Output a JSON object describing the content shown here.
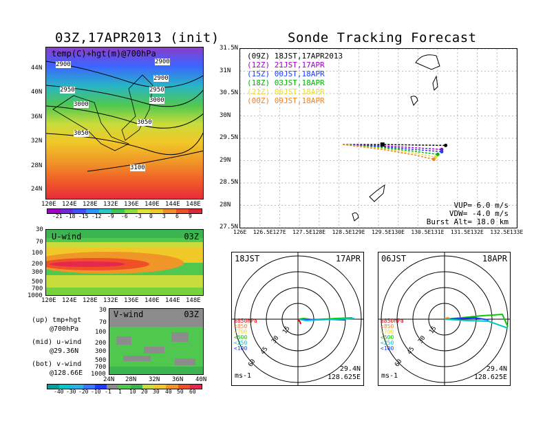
{
  "left": {
    "title": "03Z,17APR2013 (init)",
    "top_map": {
      "label": "temp(C)+hgt(m)@700hPa",
      "lat_labels": [
        "44N",
        "40N",
        "36N",
        "32N",
        "28N",
        "24N"
      ],
      "lon_labels": [
        "120E",
        "124E",
        "128E",
        "132E",
        "136E",
        "140E",
        "144E",
        "148E"
      ],
      "contour_labels": [
        "2900",
        "2900",
        "2950",
        "2950",
        "3000",
        "3000",
        "3050",
        "3050",
        "3100",
        "2900"
      ]
    },
    "temp_colorbar": [
      "-21",
      "-18",
      "-15",
      "-12",
      "-9",
      "-6",
      "-3",
      "0",
      "3",
      "6",
      "9"
    ],
    "u_panel": {
      "name": "U-wind",
      "time": "03Z",
      "p_labels": [
        "30",
        "70",
        "100",
        "200",
        "300",
        "500",
        "700",
        "1000"
      ],
      "lon_labels": [
        "120E",
        "124E",
        "128E",
        "132E",
        "136E",
        "140E",
        "144E",
        "148E"
      ]
    },
    "v_panel": {
      "name": "V-wind",
      "time": "03Z",
      "p_labels": [
        "30",
        "70",
        "100",
        "200",
        "300",
        "500",
        "700",
        "1000"
      ],
      "lat_labels": [
        "24N",
        "28N",
        "32N",
        "36N",
        "40N"
      ]
    },
    "legend_notes": {
      "up1": "(up) tmp+hgt",
      "up2": "@700hPa",
      "mid1": "(mid) u-wind",
      "mid2": "@29.36N",
      "bot1": "(bot) v-wind",
      "bot2": "@128.66E"
    },
    "wind_colorbar": [
      "-40",
      "-30",
      "-20",
      "-10",
      "-1",
      "1",
      "10",
      "20",
      "30",
      "40",
      "50",
      "60"
    ]
  },
  "right": {
    "title": "Sonde Tracking Forecast",
    "lat_labels": [
      "31.5N",
      "31N",
      "30.5N",
      "30N",
      "29.5N",
      "29N",
      "28.5N",
      "28N",
      "27.5N"
    ],
    "lon_labels": [
      "126E",
      "126.5E",
      "127E",
      "127.5E",
      "128E",
      "128.5E",
      "129E",
      "129.5E",
      "130E",
      "130.5E",
      "131E",
      "131.5E",
      "132E",
      "132.5E",
      "133E"
    ],
    "legend": [
      {
        "tag": "(09Z)",
        "text": "18JST,17APR2013",
        "color": "#000000"
      },
      {
        "tag": "(12Z)",
        "text": "21JST,17APR",
        "color": "#a000c8"
      },
      {
        "tag": "(15Z)",
        "text": "00JST,18APR",
        "color": "#1e3cff"
      },
      {
        "tag": "(18Z)",
        "text": "03JST,18APR",
        "color": "#00b400"
      },
      {
        "tag": "(21Z)",
        "text": "06JST,18APR",
        "color": "#e6dc32"
      },
      {
        "tag": "(00Z)",
        "text": "09JST,18APR",
        "color": "#f08228"
      }
    ],
    "params": {
      "vup": "VUP= 6.0 m/s",
      "vdw": "VDW= -4.0 m/s",
      "burst": "Burst Alt= 18.0 km"
    }
  },
  "polar_left": {
    "time": "18JST",
    "date": "17APR",
    "ring_labels": [
      "15",
      "30",
      "45",
      "60"
    ],
    "pressure_legend": [
      "≥850hPa",
      "<850",
      "<700",
      "<500",
      "<250",
      "<100"
    ],
    "lat": "29.4N",
    "lon": "128.625E",
    "unit": "ms-1"
  },
  "polar_right": {
    "time": "06JST",
    "date": "18APR",
    "ring_labels": [
      "15",
      "30",
      "45",
      "60"
    ],
    "pressure_legend": [
      "≥850hPa",
      "<850",
      "<700",
      "<500",
      "<250",
      "<100"
    ],
    "lat": "29.4N",
    "lon": "128.625E",
    "unit": "ms-1"
  },
  "colors": {
    "pressure_legend": [
      "#e60000",
      "#f08228",
      "#e6dc32",
      "#00c800",
      "#00c8c8",
      "#1e3cff"
    ]
  },
  "chart_data": [
    {
      "type": "line",
      "title": "Sonde Tracking Forecast",
      "xlim": [
        126,
        133
      ],
      "ylim": [
        27.5,
        31.5
      ],
      "series": [
        {
          "name": "18JST,17APR2013",
          "x": [
            128.6,
            129.6,
            130.4,
            131.2
          ],
          "y": [
            29.36,
            29.36,
            29.35,
            29.34
          ]
        },
        {
          "name": "21JST,17APR",
          "x": [
            128.6,
            129.6,
            130.4,
            131.1
          ],
          "y": [
            29.36,
            29.33,
            29.29,
            29.25
          ]
        },
        {
          "name": "00JST,18APR",
          "x": [
            128.6,
            129.6,
            130.4,
            131.1
          ],
          "y": [
            29.36,
            29.31,
            29.25,
            29.2
          ]
        },
        {
          "name": "03JST,18APR",
          "x": [
            128.6,
            129.6,
            130.4,
            131.0
          ],
          "y": [
            29.36,
            29.29,
            29.21,
            29.14
          ]
        },
        {
          "name": "06JST,18APR",
          "x": [
            128.6,
            129.6,
            130.4,
            130.95
          ],
          "y": [
            29.36,
            29.27,
            29.17,
            29.08
          ]
        },
        {
          "name": "09JST,18APR",
          "x": [
            128.6,
            129.6,
            130.4,
            130.9
          ],
          "y": [
            29.36,
            29.25,
            29.13,
            29.03
          ]
        }
      ]
    }
  ]
}
